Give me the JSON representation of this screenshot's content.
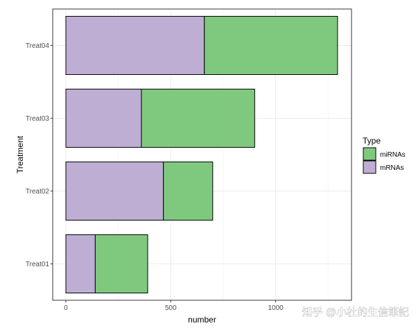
{
  "chart_data": {
    "type": "bar",
    "orientation": "horizontal",
    "stacked": true,
    "categories": [
      "Treat01",
      "Treat02",
      "Treat03",
      "Treat04"
    ],
    "series": [
      {
        "name": "mRNAs",
        "values": [
          140,
          465,
          360,
          660
        ],
        "color": "#BEAED4"
      },
      {
        "name": "miRNAs",
        "values": [
          250,
          235,
          540,
          635
        ],
        "color": "#7FC97F"
      }
    ],
    "xlabel": "number",
    "ylabel": "Treatment",
    "xlim": [
      0,
      1300
    ],
    "x_ticks": [
      0,
      500,
      1000
    ],
    "x_tick_labels": [
      "0",
      "500",
      "1000"
    ],
    "grid": true,
    "legend": {
      "title": "Type",
      "position": "right",
      "order": [
        "miRNAs",
        "mRNAs"
      ]
    }
  },
  "watermark": "知乎 @小杜的生信筆記"
}
